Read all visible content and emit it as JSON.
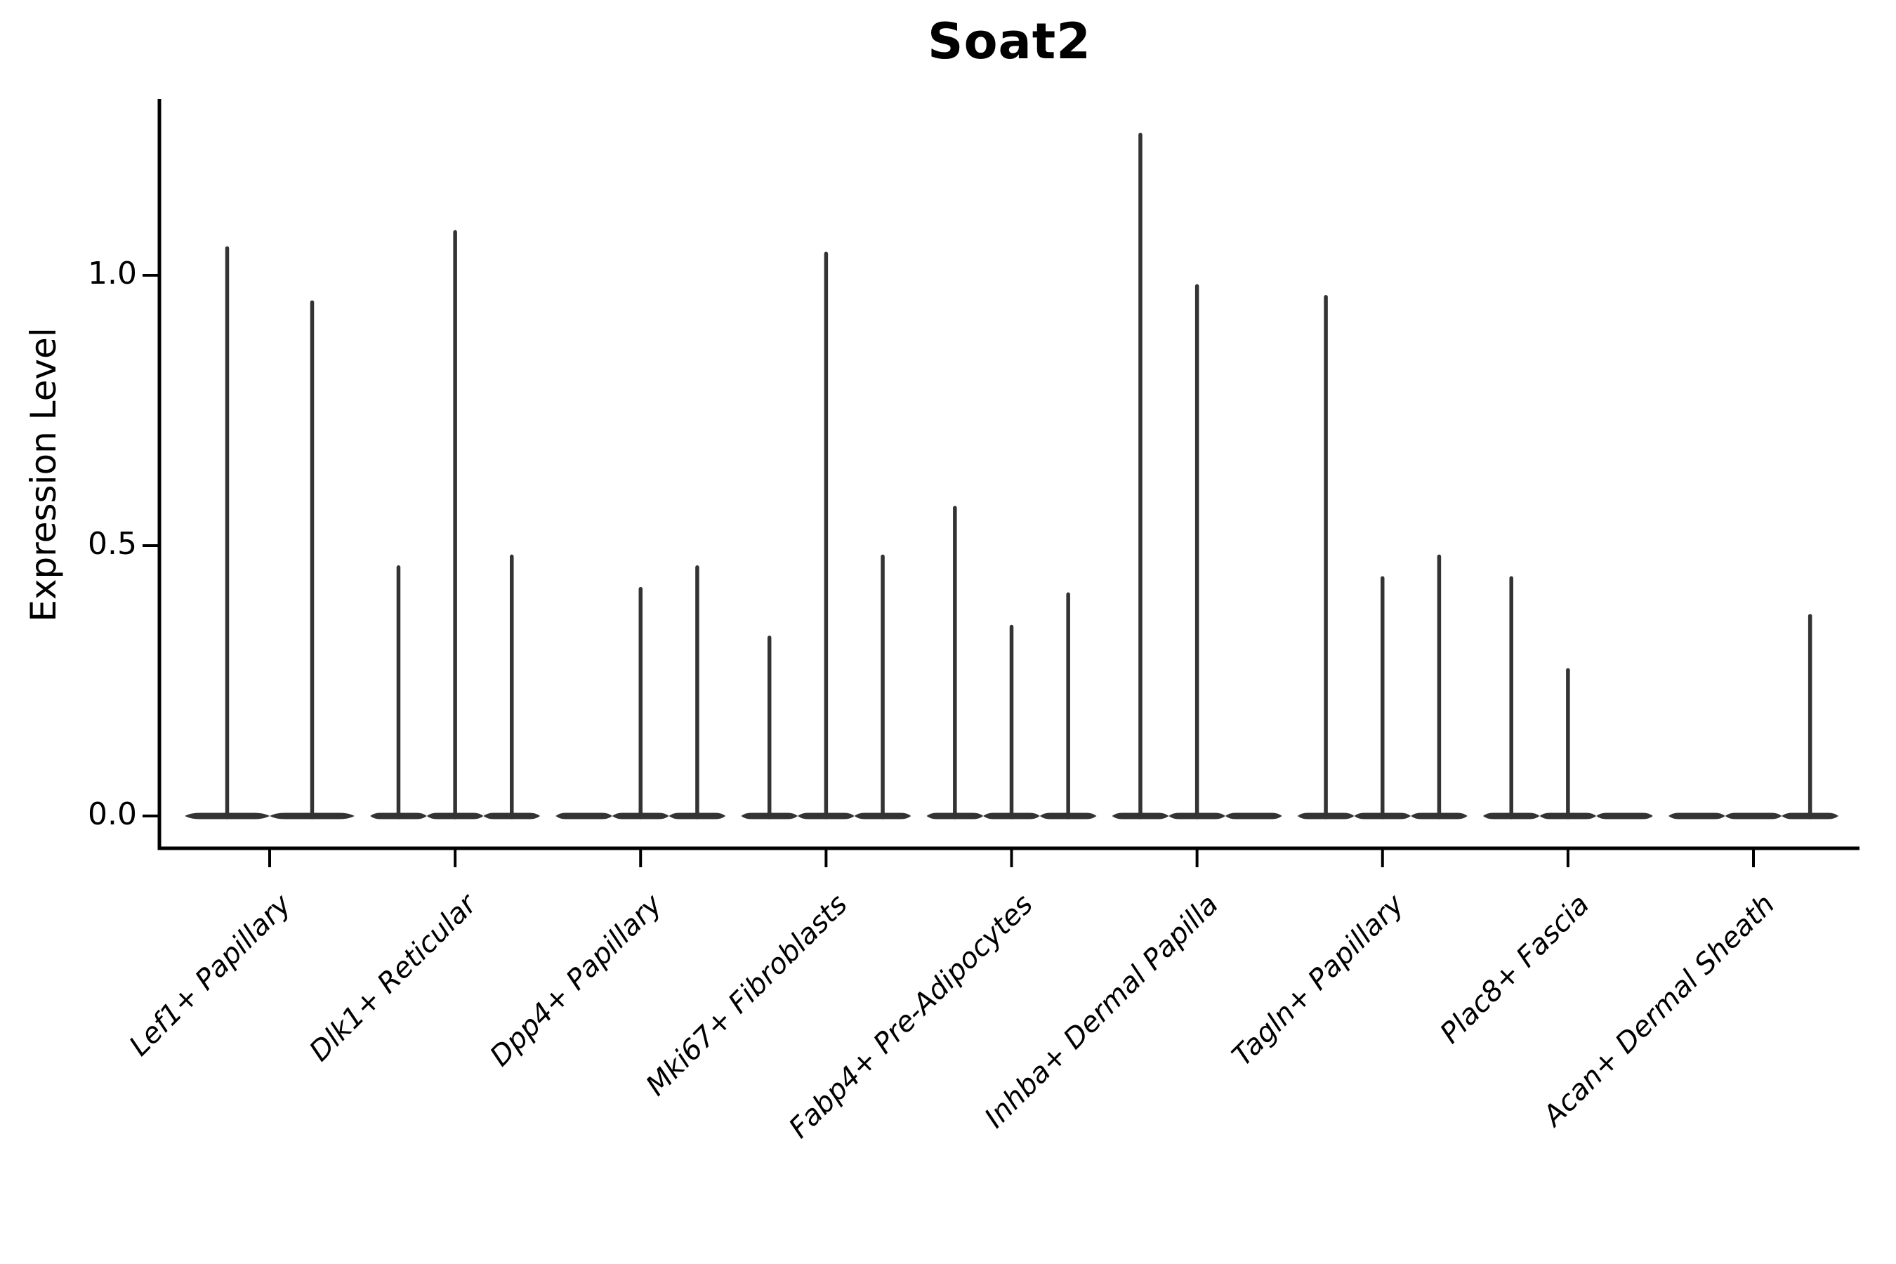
{
  "title": "Soat2",
  "ylabel": "Expression Level",
  "chart_data": {
    "type": "violin",
    "title": "Soat2",
    "xlabel": "",
    "ylabel": "Expression Level",
    "yticks": [
      "0.0",
      "0.5",
      "1.0"
    ],
    "ytick_values": [
      0.0,
      0.5,
      1.0
    ],
    "ylim": [
      -0.06,
      1.33
    ],
    "grid": "off",
    "legend": "none",
    "violin_color": "#333333",
    "axis_color": "#000000",
    "description": "Single-gene violin plot; each violin is a flat pancake at expression 0 with a thin spike up to the max expression value. null max = violin present but all-zero (no spike).",
    "categories": [
      "Lef1+ Papillary",
      "Dlk1+ Reticular",
      "Dpp4+ Papillary",
      "Mki67+ Fibroblasts",
      "Fabp4+ Pre-Adipocytes",
      "Inhba+ Dermal Papilla",
      "Tagln+ Papillary",
      "Plac8+ Fascia",
      "Acan+ Dermal Sheath"
    ],
    "groups": [
      {
        "category": "Lef1+ Papillary",
        "violin_max": [
          1.05,
          0.95
        ]
      },
      {
        "category": "Dlk1+ Reticular",
        "violin_max": [
          0.46,
          1.08,
          0.48
        ]
      },
      {
        "category": "Dpp4+ Papillary",
        "violin_max": [
          null,
          0.42,
          0.46
        ]
      },
      {
        "category": "Mki67+ Fibroblasts",
        "violin_max": [
          0.33,
          1.04,
          0.48
        ]
      },
      {
        "category": "Fabp4+ Pre-Adipocytes",
        "violin_max": [
          0.57,
          0.35,
          0.41
        ]
      },
      {
        "category": "Inhba+ Dermal Papilla",
        "violin_max": [
          1.26,
          0.98,
          null
        ]
      },
      {
        "category": "Tagln+ Papillary",
        "violin_max": [
          0.96,
          0.44,
          0.48
        ]
      },
      {
        "category": "Plac8+ Fascia",
        "violin_max": [
          0.44,
          0.27,
          null
        ]
      },
      {
        "category": "Acan+ Dermal Sheath",
        "violin_max": [
          null,
          null,
          0.37
        ]
      }
    ]
  }
}
